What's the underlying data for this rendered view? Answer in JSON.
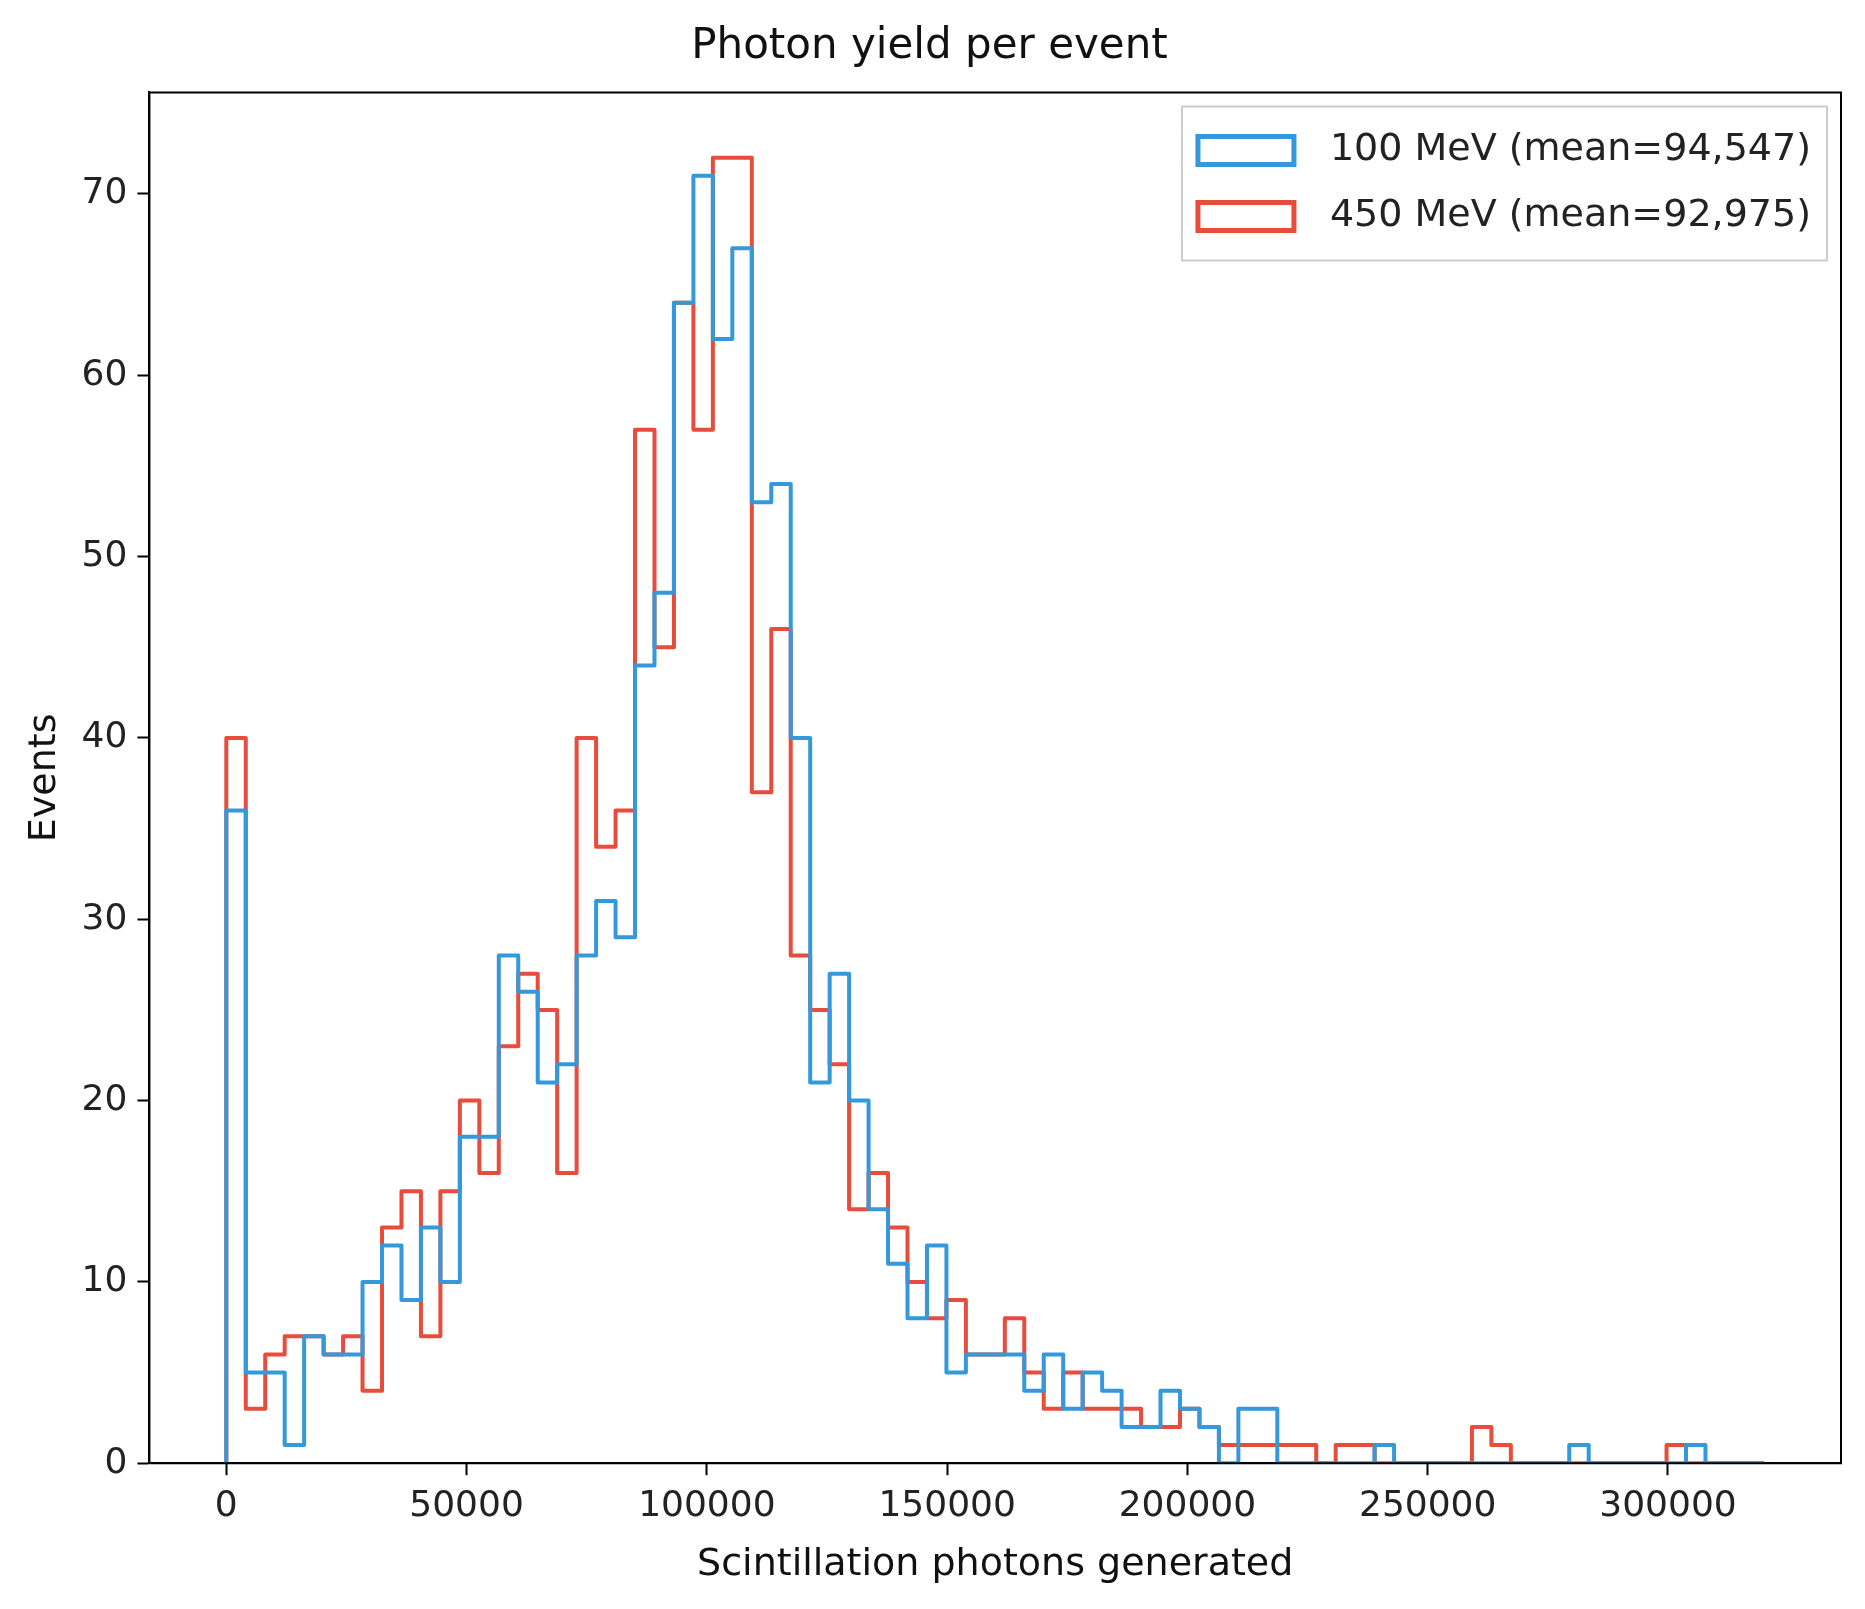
{
  "chart_data": {
    "type": "histogram",
    "title": "Photon yield per event",
    "xlabel": "Scintillation photons generated",
    "ylabel": "Events",
    "bins": [
      0,
      4050,
      8100,
      12150,
      16200,
      20250,
      24300,
      28350,
      32400,
      36450,
      40500,
      44550,
      48600,
      52650,
      56700,
      60750,
      64800,
      68850,
      72900,
      76950,
      81000,
      85050,
      89100,
      93150,
      97200,
      101250,
      105300,
      109350,
      113400,
      117450,
      121500,
      125550,
      129600,
      133650,
      137700,
      141750,
      145800,
      149850,
      153900,
      157950,
      162000,
      166050,
      170100,
      174150,
      178200,
      182250,
      186300,
      190350,
      194400,
      198450,
      202500,
      206550,
      210600,
      214650,
      218700,
      222750,
      226800,
      230850,
      234900,
      238950,
      243000,
      247050,
      251100,
      255150,
      259200,
      263250,
      267300,
      271350,
      275400,
      279450,
      283500,
      287550,
      291600,
      295650,
      299700,
      303750,
      307800,
      311850,
      315900,
      319950
    ],
    "series": [
      {
        "name": "100 MeV (mean=94,547)",
        "color": "#3498db",
        "values": [
          36,
          5,
          5,
          1,
          7,
          6,
          6,
          10,
          12,
          9,
          13,
          10,
          18,
          18,
          28,
          26,
          21,
          22,
          28,
          31,
          29,
          44,
          48,
          64,
          71,
          62,
          67,
          53,
          54,
          40,
          21,
          27,
          20,
          14,
          11,
          8,
          12,
          5,
          6,
          6,
          6,
          4,
          6,
          3,
          5,
          4,
          2,
          2,
          4,
          3,
          2,
          0,
          3,
          3,
          0,
          0,
          0,
          0,
          0,
          1,
          0,
          0,
          0,
          0,
          0,
          0,
          0,
          0,
          0,
          1,
          0,
          0,
          0,
          0,
          0,
          1,
          0,
          0,
          0
        ]
      },
      {
        "name": "450 MeV (mean=92,975)",
        "color": "#e74c3c",
        "values": [
          40,
          3,
          6,
          7,
          7,
          6,
          7,
          4,
          13,
          15,
          7,
          15,
          20,
          16,
          23,
          27,
          25,
          16,
          40,
          34,
          36,
          57,
          45,
          64,
          57,
          72,
          72,
          37,
          46,
          28,
          25,
          22,
          14,
          16,
          13,
          10,
          8,
          9,
          6,
          6,
          8,
          5,
          3,
          5,
          3,
          3,
          3,
          2,
          2,
          3,
          2,
          1,
          1,
          1,
          1,
          1,
          0,
          1,
          1,
          0,
          0,
          0,
          0,
          0,
          2,
          1,
          0,
          0,
          0,
          0,
          0,
          0,
          0,
          0,
          1,
          0,
          0,
          0,
          0
        ]
      }
    ],
    "xlim": [
      -16000,
      336000
    ],
    "ylim": [
      0,
      75.6
    ],
    "xticks": [
      0,
      50000,
      100000,
      150000,
      200000,
      250000,
      300000
    ],
    "yticks": [
      0,
      10,
      20,
      30,
      40,
      50,
      60,
      70
    ],
    "legend": "top right"
  }
}
